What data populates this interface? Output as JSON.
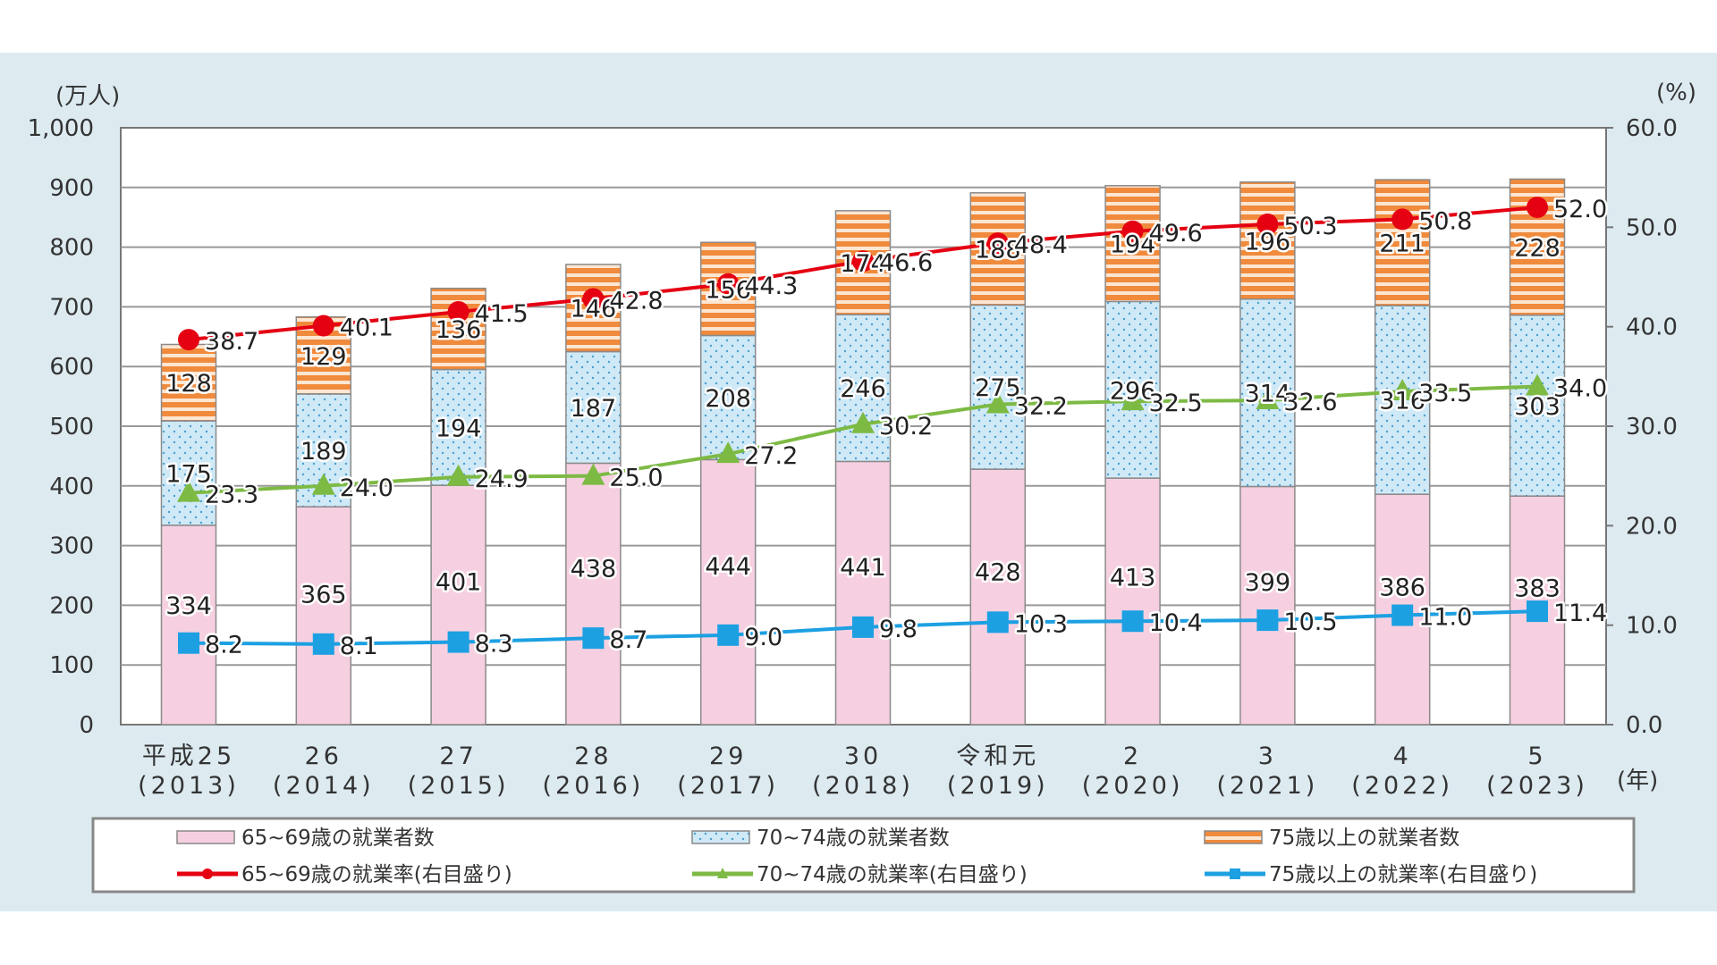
{
  "chart_data": {
    "type": "bar",
    "title": "",
    "ylabel": "(万人)",
    "y2label": "(%)",
    "xlabel": "(年)",
    "ylim": [
      0,
      1000
    ],
    "y2lim": [
      0,
      60
    ],
    "yticks": [
      "0",
      "100",
      "200",
      "300",
      "400",
      "500",
      "600",
      "700",
      "800",
      "900",
      "1,000"
    ],
    "y2ticks": [
      "0.0",
      "10.0",
      "20.0",
      "30.0",
      "40.0",
      "50.0",
      "60.0"
    ],
    "categories": [
      [
        "平成25",
        "(2013)"
      ],
      [
        "26",
        "(2014)"
      ],
      [
        "27",
        "(2015)"
      ],
      [
        "28",
        "(2016)"
      ],
      [
        "29",
        "(2017)"
      ],
      [
        "30",
        "(2018)"
      ],
      [
        "令和元",
        "(2019)"
      ],
      [
        "2",
        "(2020)"
      ],
      [
        "3",
        "(2021)"
      ],
      [
        "4",
        "(2022)"
      ],
      [
        "5",
        "(2023)"
      ]
    ],
    "series": [
      {
        "name": "65~69歳の就業者数",
        "type": "bar",
        "color": "#f6d0e1",
        "values": [
          334,
          365,
          401,
          438,
          444,
          441,
          428,
          413,
          399,
          386,
          383
        ]
      },
      {
        "name": "70~74歳の就業者数",
        "type": "bar",
        "color": "#cfe9f7",
        "values": [
          175,
          189,
          194,
          187,
          208,
          246,
          275,
          296,
          314,
          316,
          303
        ]
      },
      {
        "name": "75歳以上の就業者数",
        "type": "bar",
        "color": "#f08a3c",
        "values": [
          128,
          129,
          136,
          146,
          156,
          174,
          188,
          194,
          196,
          211,
          228
        ]
      },
      {
        "name": "65~69歳の就業率(右目盛り)",
        "type": "line",
        "axis": "right",
        "marker": "circle",
        "color": "#e50012",
        "values": [
          38.7,
          40.1,
          41.5,
          42.8,
          44.3,
          46.6,
          48.4,
          49.6,
          50.3,
          50.8,
          52.0
        ]
      },
      {
        "name": "70~74歳の就業率(右目盛り)",
        "type": "line",
        "axis": "right",
        "marker": "triangle",
        "color": "#7dba44",
        "values": [
          23.3,
          24.0,
          24.9,
          25.0,
          27.2,
          30.2,
          32.2,
          32.5,
          32.6,
          33.5,
          34.0
        ]
      },
      {
        "name": "75歳以上の就業率(右目盛り)",
        "type": "line",
        "axis": "right",
        "marker": "square",
        "color": "#1ca0e2",
        "values": [
          8.2,
          8.1,
          8.3,
          8.7,
          9.0,
          9.8,
          10.3,
          10.4,
          10.5,
          11.0,
          11.4
        ]
      }
    ],
    "grid": true,
    "legend": "bottom"
  }
}
